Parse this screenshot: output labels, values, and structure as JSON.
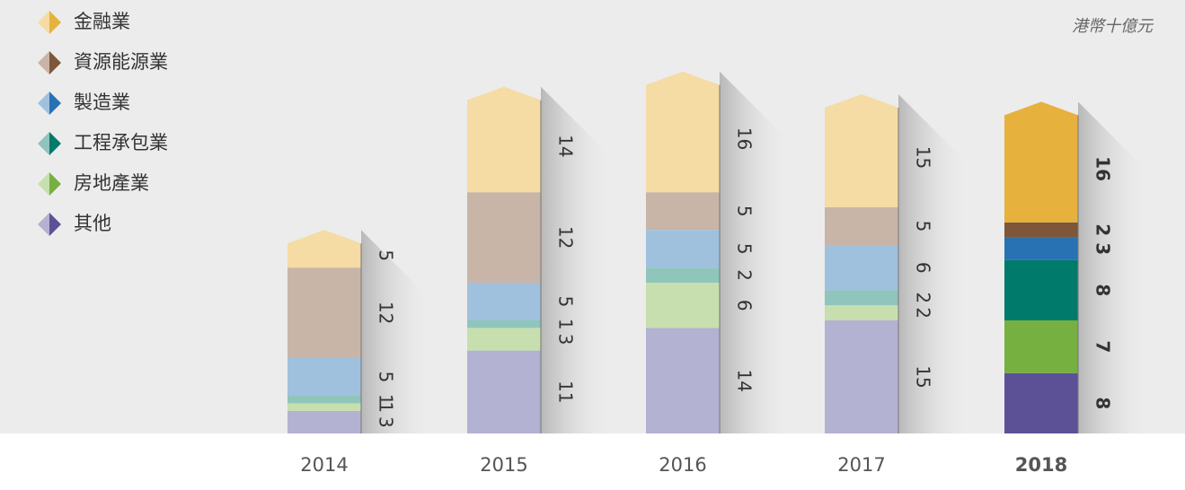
{
  "chart_data": {
    "type": "stacked_bar",
    "unit_label": "港幣十億元",
    "categories": [
      "2014",
      "2015",
      "2016",
      "2017",
      "2018"
    ],
    "series": [
      {
        "name": "金融業",
        "colors": [
          "#f5dba4",
          "#f5dba4",
          "#f5dba4",
          "#f5dba4",
          "#e6b13c"
        ],
        "values": [
          5,
          14,
          16,
          15,
          16
        ]
      },
      {
        "name": "資源能源業",
        "colors": [
          "#c8b5a8",
          "#c8b5a8",
          "#c8b5a8",
          "#c8b5a8",
          "#7e5639"
        ],
        "values": [
          12,
          12,
          5,
          5,
          2
        ]
      },
      {
        "name": "製造業",
        "colors": [
          "#9fc1de",
          "#9fc1de",
          "#9fc1de",
          "#9fc1de",
          "#2872b4"
        ],
        "values": [
          5,
          5,
          5,
          6,
          3
        ]
      },
      {
        "name": "工程承包業",
        "colors": [
          "#8fc5bb",
          "#8fc5bb",
          "#8fc5bb",
          "#8fc5bb",
          "#007a6a"
        ],
        "values": [
          1,
          1,
          2,
          2,
          8
        ]
      },
      {
        "name": "房地產業",
        "colors": [
          "#c7dfae",
          "#c7dfae",
          "#c7dfae",
          "#c7dfae",
          "#76b041"
        ],
        "values": [
          1,
          3,
          6,
          2,
          7
        ]
      },
      {
        "name": "其他",
        "colors": [
          "#b3b2d3",
          "#b3b2d3",
          "#b3b2d3",
          "#b3b2d3",
          "#5c5197"
        ],
        "values": [
          3,
          11,
          14,
          15,
          8
        ]
      }
    ]
  }
}
